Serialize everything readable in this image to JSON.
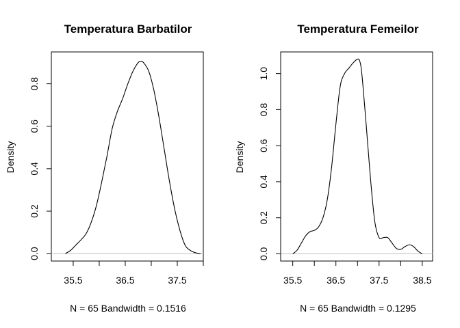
{
  "chart_data": [
    {
      "type": "line",
      "title": "Temperatura Barbatilor",
      "xlabel": "N = 65   Bandwidth = 0.1516",
      "ylabel": "Density",
      "xlim": [
        35.08,
        38.0
      ],
      "ylim": [
        -0.035,
        0.95
      ],
      "x_ticks": [
        "35.5",
        "36.5",
        "37.5"
      ],
      "x_tick_values": [
        35.5,
        36.0,
        36.5,
        37.0,
        37.5,
        38.0
      ],
      "x_labeled": [
        35.5,
        36.5,
        37.5
      ],
      "y_ticks": [
        "0.0",
        "0.2",
        "0.4",
        "0.6",
        "0.8"
      ],
      "y_tick_values": [
        0.0,
        0.2,
        0.4,
        0.6,
        0.8
      ],
      "baseline": 0,
      "baseline_color": "#bebebe",
      "line_color": "#000000",
      "series": [
        {
          "x": [
            35.35,
            35.45,
            35.55,
            35.65,
            35.75,
            35.85,
            35.95,
            36.05,
            36.15,
            36.25,
            36.35,
            36.45,
            36.55,
            36.65,
            36.75,
            36.8,
            36.85,
            36.95,
            37.05,
            37.15,
            37.25,
            37.35,
            37.45,
            37.55,
            37.65,
            37.75,
            37.85,
            37.95
          ],
          "y": [
            0.0,
            0.015,
            0.04,
            0.065,
            0.095,
            0.15,
            0.23,
            0.34,
            0.46,
            0.59,
            0.67,
            0.73,
            0.8,
            0.86,
            0.9,
            0.905,
            0.9,
            0.86,
            0.77,
            0.64,
            0.49,
            0.34,
            0.21,
            0.11,
            0.04,
            0.015,
            0.004,
            0.0
          ]
        }
      ]
    },
    {
      "type": "line",
      "title": "Temperatura Femeilor",
      "xlabel": "N = 65   Bandwidth = 0.1295",
      "ylabel": "Density",
      "xlim": [
        35.22,
        38.74
      ],
      "ylim": [
        -0.04,
        1.12
      ],
      "x_ticks": [
        "35.5",
        "36.5",
        "37.5",
        "38.5"
      ],
      "x_tick_values": [
        35.5,
        36.0,
        36.5,
        37.0,
        37.5,
        38.0,
        38.5
      ],
      "x_labeled": [
        35.5,
        36.5,
        37.5,
        38.5
      ],
      "y_ticks": [
        "0.0",
        "0.2",
        "0.4",
        "0.6",
        "0.8",
        "1.0"
      ],
      "y_tick_values": [
        0.0,
        0.2,
        0.4,
        0.6,
        0.8,
        1.0
      ],
      "baseline": 0,
      "baseline_color": "#bebebe",
      "line_color": "#000000",
      "series": [
        {
          "x": [
            35.5,
            35.6,
            35.7,
            35.8,
            35.9,
            36.0,
            36.1,
            36.2,
            36.3,
            36.4,
            36.5,
            36.6,
            36.7,
            36.8,
            36.9,
            37.0,
            37.05,
            37.1,
            37.2,
            37.3,
            37.4,
            37.5,
            37.6,
            37.7,
            37.8,
            37.9,
            38.0,
            38.1,
            38.2,
            38.3,
            38.4,
            38.5
          ],
          "y": [
            0.0,
            0.02,
            0.06,
            0.1,
            0.123,
            0.13,
            0.15,
            0.2,
            0.3,
            0.48,
            0.72,
            0.93,
            1.0,
            1.03,
            1.06,
            1.08,
            1.07,
            1.0,
            0.72,
            0.42,
            0.18,
            0.09,
            0.09,
            0.09,
            0.06,
            0.03,
            0.025,
            0.04,
            0.05,
            0.04,
            0.015,
            0.0
          ]
        }
      ]
    }
  ]
}
